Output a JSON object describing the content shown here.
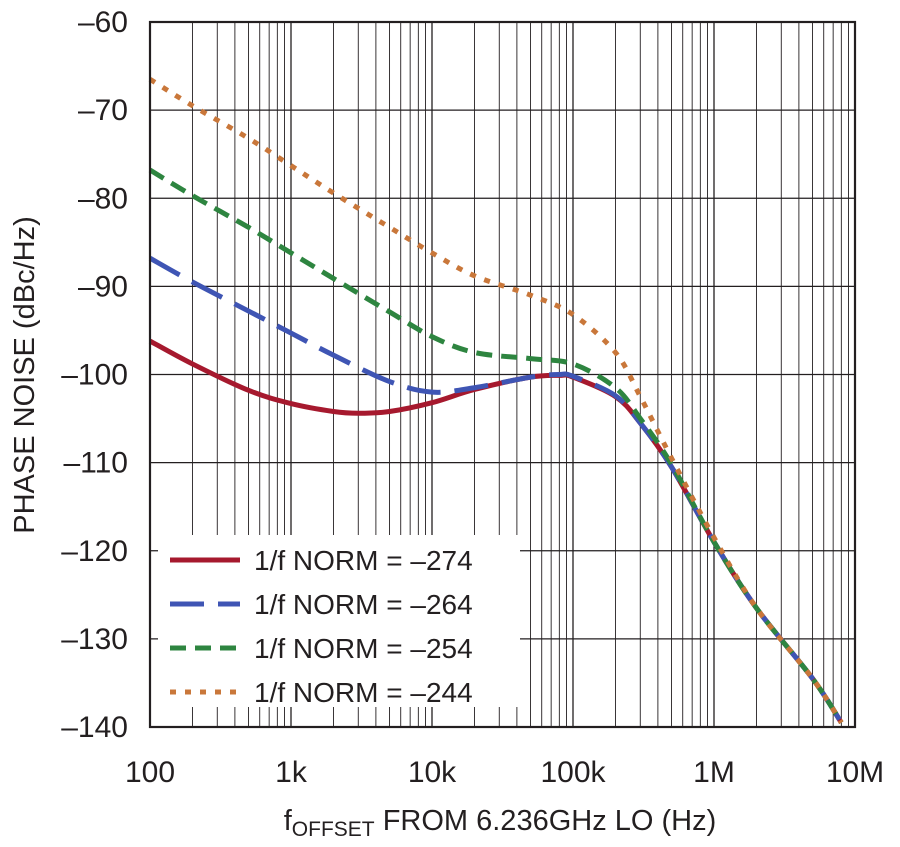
{
  "chart_data": {
    "type": "line",
    "xlabel_prefix": "f",
    "xlabel_sub": "OFFSET",
    "xlabel_rest": " FROM 6.236GHz LO (Hz)",
    "ylabel": "PHASE NOISE (dBc/Hz)",
    "x_scale": "log",
    "xlim": [
      100,
      10000000
    ],
    "ylim": [
      -140,
      -60
    ],
    "grid": true,
    "legend_position": "lower-left",
    "x_ticks": [
      {
        "value": 100,
        "label": "100"
      },
      {
        "value": 1000,
        "label": "1k"
      },
      {
        "value": 10000,
        "label": "10k"
      },
      {
        "value": 100000,
        "label": "100k"
      },
      {
        "value": 1000000,
        "label": "1M"
      },
      {
        "value": 10000000,
        "label": "10M"
      }
    ],
    "y_ticks": [
      {
        "value": -60,
        "label": "–60"
      },
      {
        "value": -70,
        "label": "–70"
      },
      {
        "value": -80,
        "label": "–80"
      },
      {
        "value": -90,
        "label": "–90"
      },
      {
        "value": -100,
        "label": "–100"
      },
      {
        "value": -110,
        "label": "–110"
      },
      {
        "value": -120,
        "label": "–120"
      },
      {
        "value": -130,
        "label": "–130"
      },
      {
        "value": -140,
        "label": "–140"
      }
    ],
    "series": [
      {
        "name": "1/f NORM = –274",
        "color": "#a6192e",
        "style": "solid",
        "x": [
          100,
          200,
          500,
          1000,
          2000,
          3000,
          5000,
          10000,
          20000,
          50000,
          80000,
          100000,
          200000,
          300000,
          500000,
          1000000,
          2000000,
          5000000,
          8000000
        ],
        "y": [
          -96.2,
          -98.8,
          -101.8,
          -103.3,
          -104.2,
          -104.4,
          -104.2,
          -103.2,
          -101.7,
          -100.3,
          -100.1,
          -100.3,
          -102.5,
          -105.5,
          -110.5,
          -119,
          -126.5,
          -134.5,
          -139.5
        ]
      },
      {
        "name": "1/f NORM = –264",
        "color": "#3f55b4",
        "style": "long-dash",
        "x": [
          100,
          200,
          500,
          1000,
          2000,
          5000,
          10000,
          20000,
          50000,
          80000,
          100000,
          200000,
          300000,
          500000,
          1000000,
          2000000,
          5000000,
          8000000
        ],
        "y": [
          -86.8,
          -89.5,
          -92.8,
          -95.3,
          -97.8,
          -100.8,
          -102,
          -101.5,
          -100.3,
          -100,
          -100.2,
          -102.4,
          -105.5,
          -110.5,
          -119,
          -126.5,
          -134.5,
          -139.5
        ]
      },
      {
        "name": "1/f NORM = –254",
        "color": "#2e8540",
        "style": "dash",
        "x": [
          100,
          200,
          500,
          1000,
          2000,
          5000,
          10000,
          20000,
          50000,
          100000,
          200000,
          300000,
          500000,
          1000000,
          2000000,
          5000000,
          8000000
        ],
        "y": [
          -76.8,
          -79.7,
          -83.3,
          -86.2,
          -89.1,
          -92.9,
          -95.7,
          -97.5,
          -98.2,
          -98.8,
          -101.5,
          -105,
          -110.2,
          -119,
          -126.5,
          -134.5,
          -139.5
        ]
      },
      {
        "name": "1/f NORM = –244",
        "color": "#c9773a",
        "style": "dot",
        "x": [
          100,
          200,
          500,
          1000,
          2000,
          5000,
          10000,
          20000,
          50000,
          100000,
          200000,
          300000,
          500000,
          1000000,
          2000000,
          5000000,
          8000000
        ],
        "y": [
          -66.5,
          -69.5,
          -73.2,
          -76.3,
          -79.4,
          -83.3,
          -86.2,
          -88.8,
          -91,
          -93.2,
          -97.5,
          -102.5,
          -109.5,
          -118.5,
          -126.5,
          -134.5,
          -139.5
        ]
      }
    ]
  }
}
